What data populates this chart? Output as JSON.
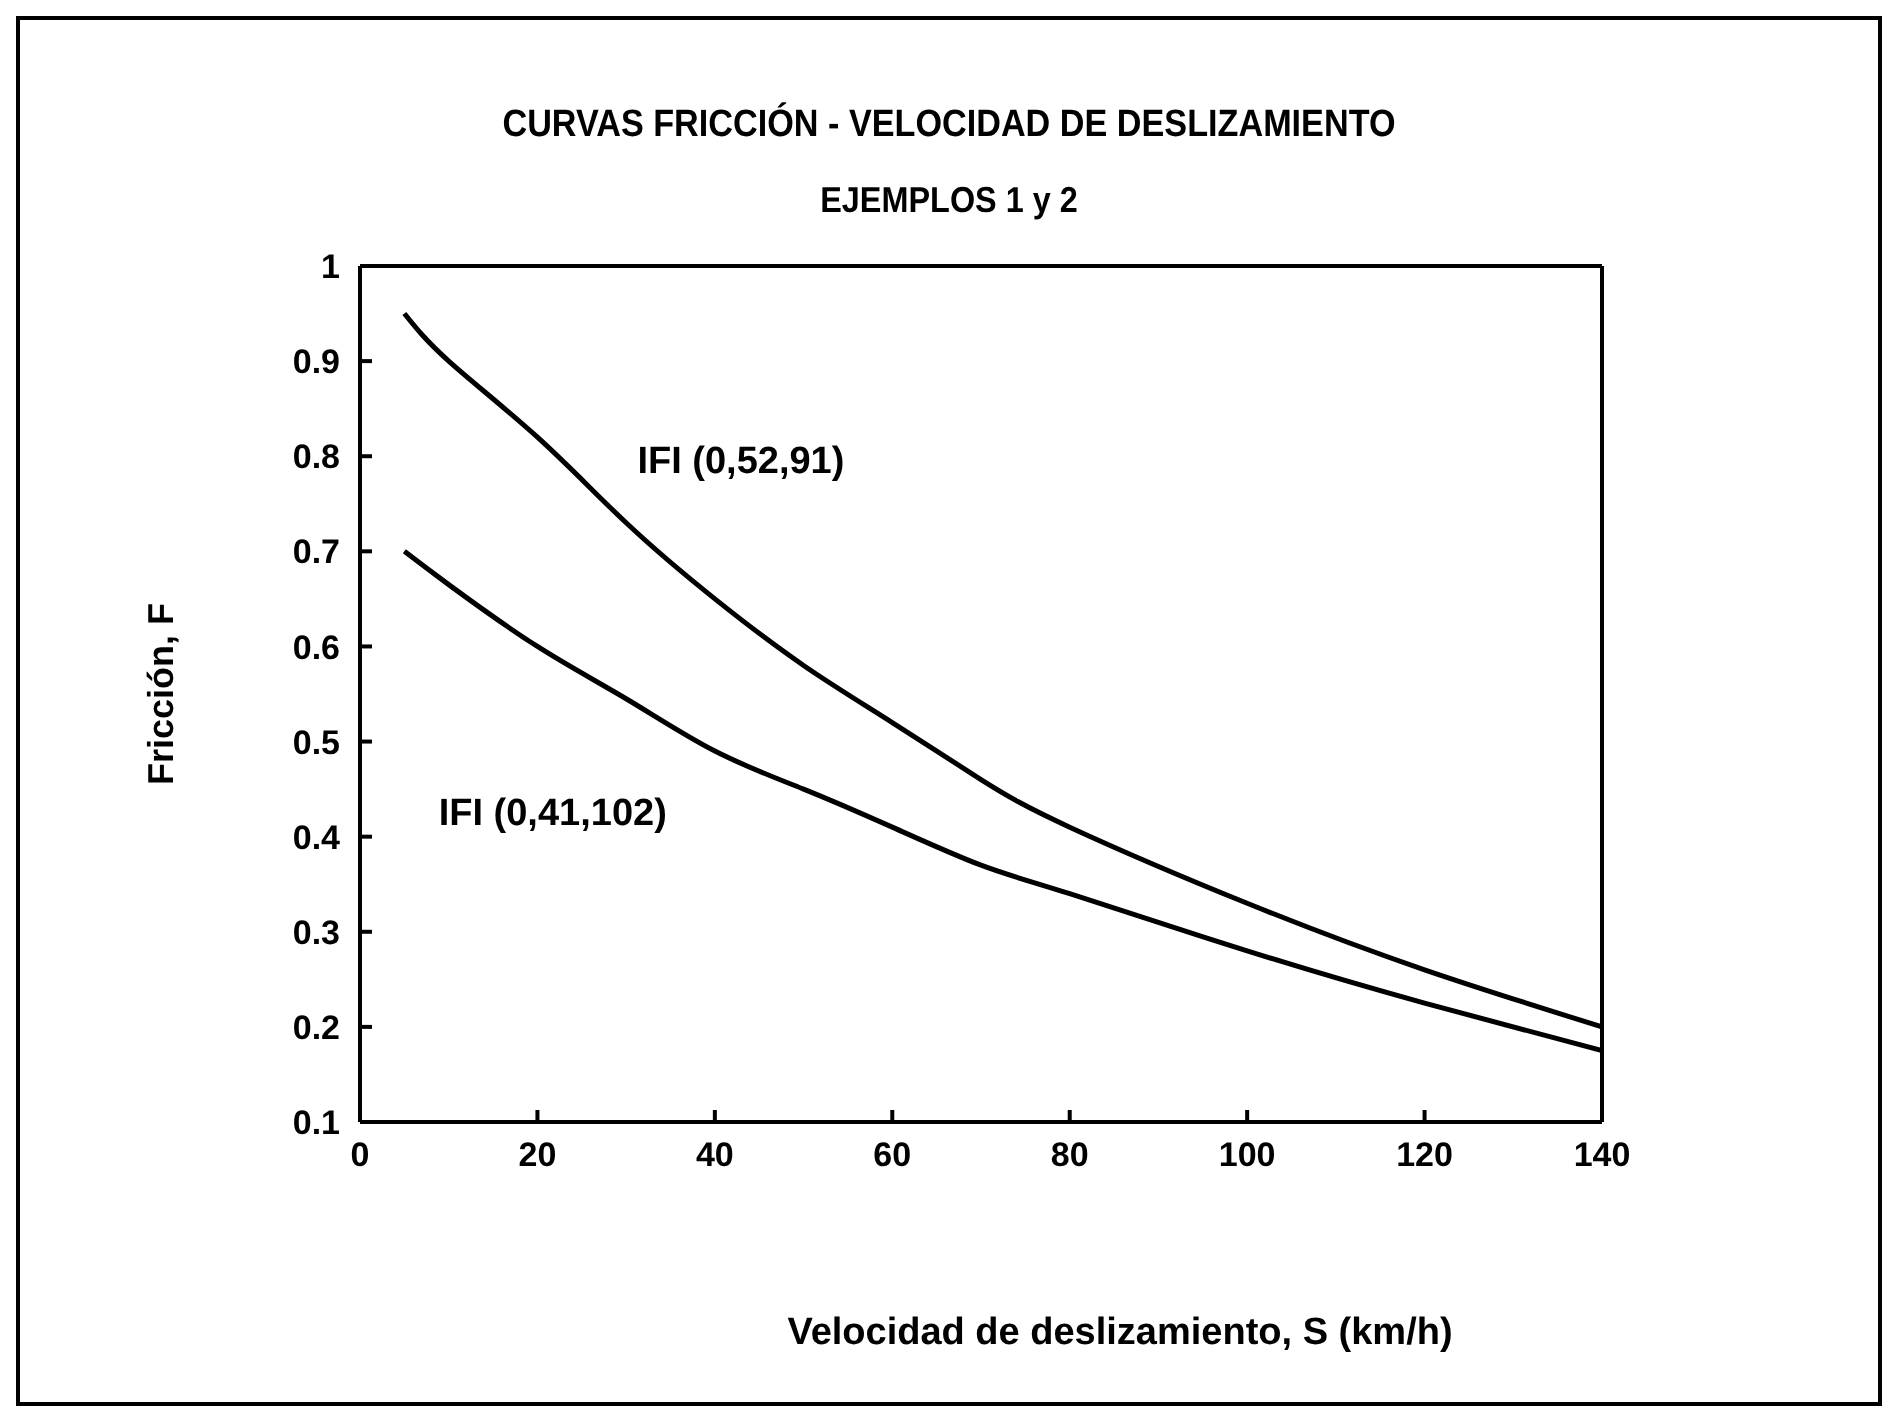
{
  "chart_data": {
    "type": "line",
    "title": "CURVAS FRICCIÓN - VELOCIDAD DE DESLIZAMIENTO",
    "subtitle": "EJEMPLOS 1 y 2",
    "xlabel": "Velocidad de deslizamiento, S (km/h)",
    "ylabel": "Fricción, F",
    "xlim": [
      0,
      140
    ],
    "xticks": [
      0,
      20,
      40,
      60,
      80,
      100,
      120,
      140
    ],
    "ylim": [
      0.1,
      1
    ],
    "yticks": [
      0.1,
      0.2,
      0.3,
      0.4,
      0.5,
      0.6,
      0.7,
      0.8,
      0.9,
      1
    ],
    "grid": false,
    "legend": false,
    "marker": "none",
    "line_style": "solid",
    "series": [
      {
        "name": "IFI (0,52,91)",
        "color": "#000000",
        "x": [
          5,
          10,
          20,
          30,
          40,
          50,
          60,
          70,
          80,
          100,
          120,
          140
        ],
        "values": [
          0.95,
          0.9,
          0.82,
          0.73,
          0.65,
          0.58,
          0.52,
          0.46,
          0.41,
          0.33,
          0.26,
          0.2
        ]
      },
      {
        "name": "IFI (0,41,102)",
        "color": "#000000",
        "x": [
          5,
          10,
          20,
          30,
          40,
          50,
          60,
          70,
          80,
          100,
          120,
          140
        ],
        "values": [
          0.7,
          0.665,
          0.6,
          0.545,
          0.49,
          0.45,
          0.41,
          0.37,
          0.34,
          0.28,
          0.225,
          0.175
        ]
      }
    ]
  }
}
